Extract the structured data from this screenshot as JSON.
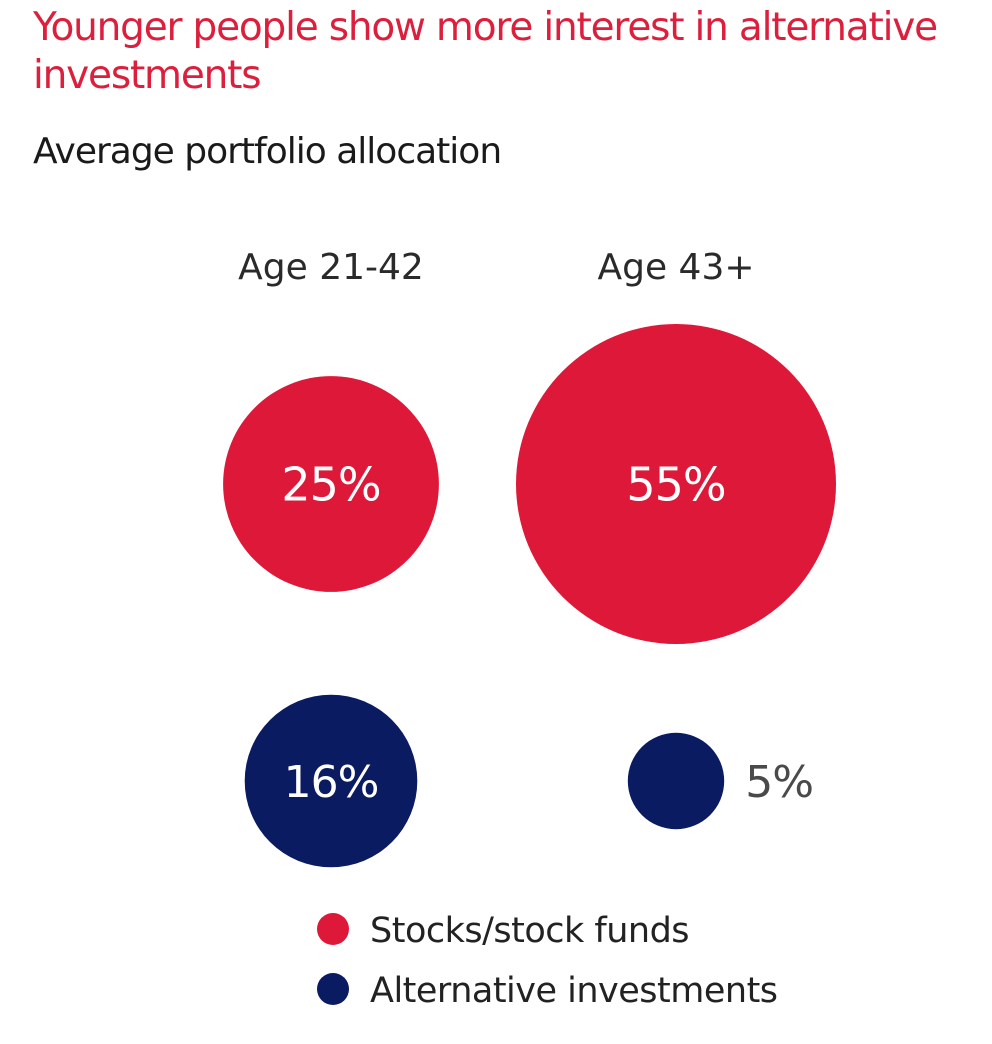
{
  "title": "Younger people show more interest in alternative investments",
  "subtitle": "Average portfolio allocation",
  "colors": {
    "title": "#dc1f3c",
    "stocks": "#de1838",
    "alternative": "#0b1b61",
    "group_label": "#2a2a2a",
    "outside_label": "#4a4a4a"
  },
  "chart_data": {
    "type": "bubble",
    "title": "Younger people show more interest in alternative investments",
    "subtitle": "Average portfolio allocation",
    "categories": [
      "Age 21-42",
      "Age 43+"
    ],
    "series": [
      {
        "name": "Stocks/stock funds",
        "values": [
          25,
          55
        ],
        "labels": [
          "25%",
          "55%"
        ],
        "color": "#de1838"
      },
      {
        "name": "Alternative investments",
        "values": [
          16,
          5
        ],
        "labels": [
          "16%",
          "5%"
        ],
        "color": "#0b1b61"
      }
    ],
    "unit": "%",
    "encoding": "circle area proportional to value",
    "legend_position": "bottom"
  }
}
